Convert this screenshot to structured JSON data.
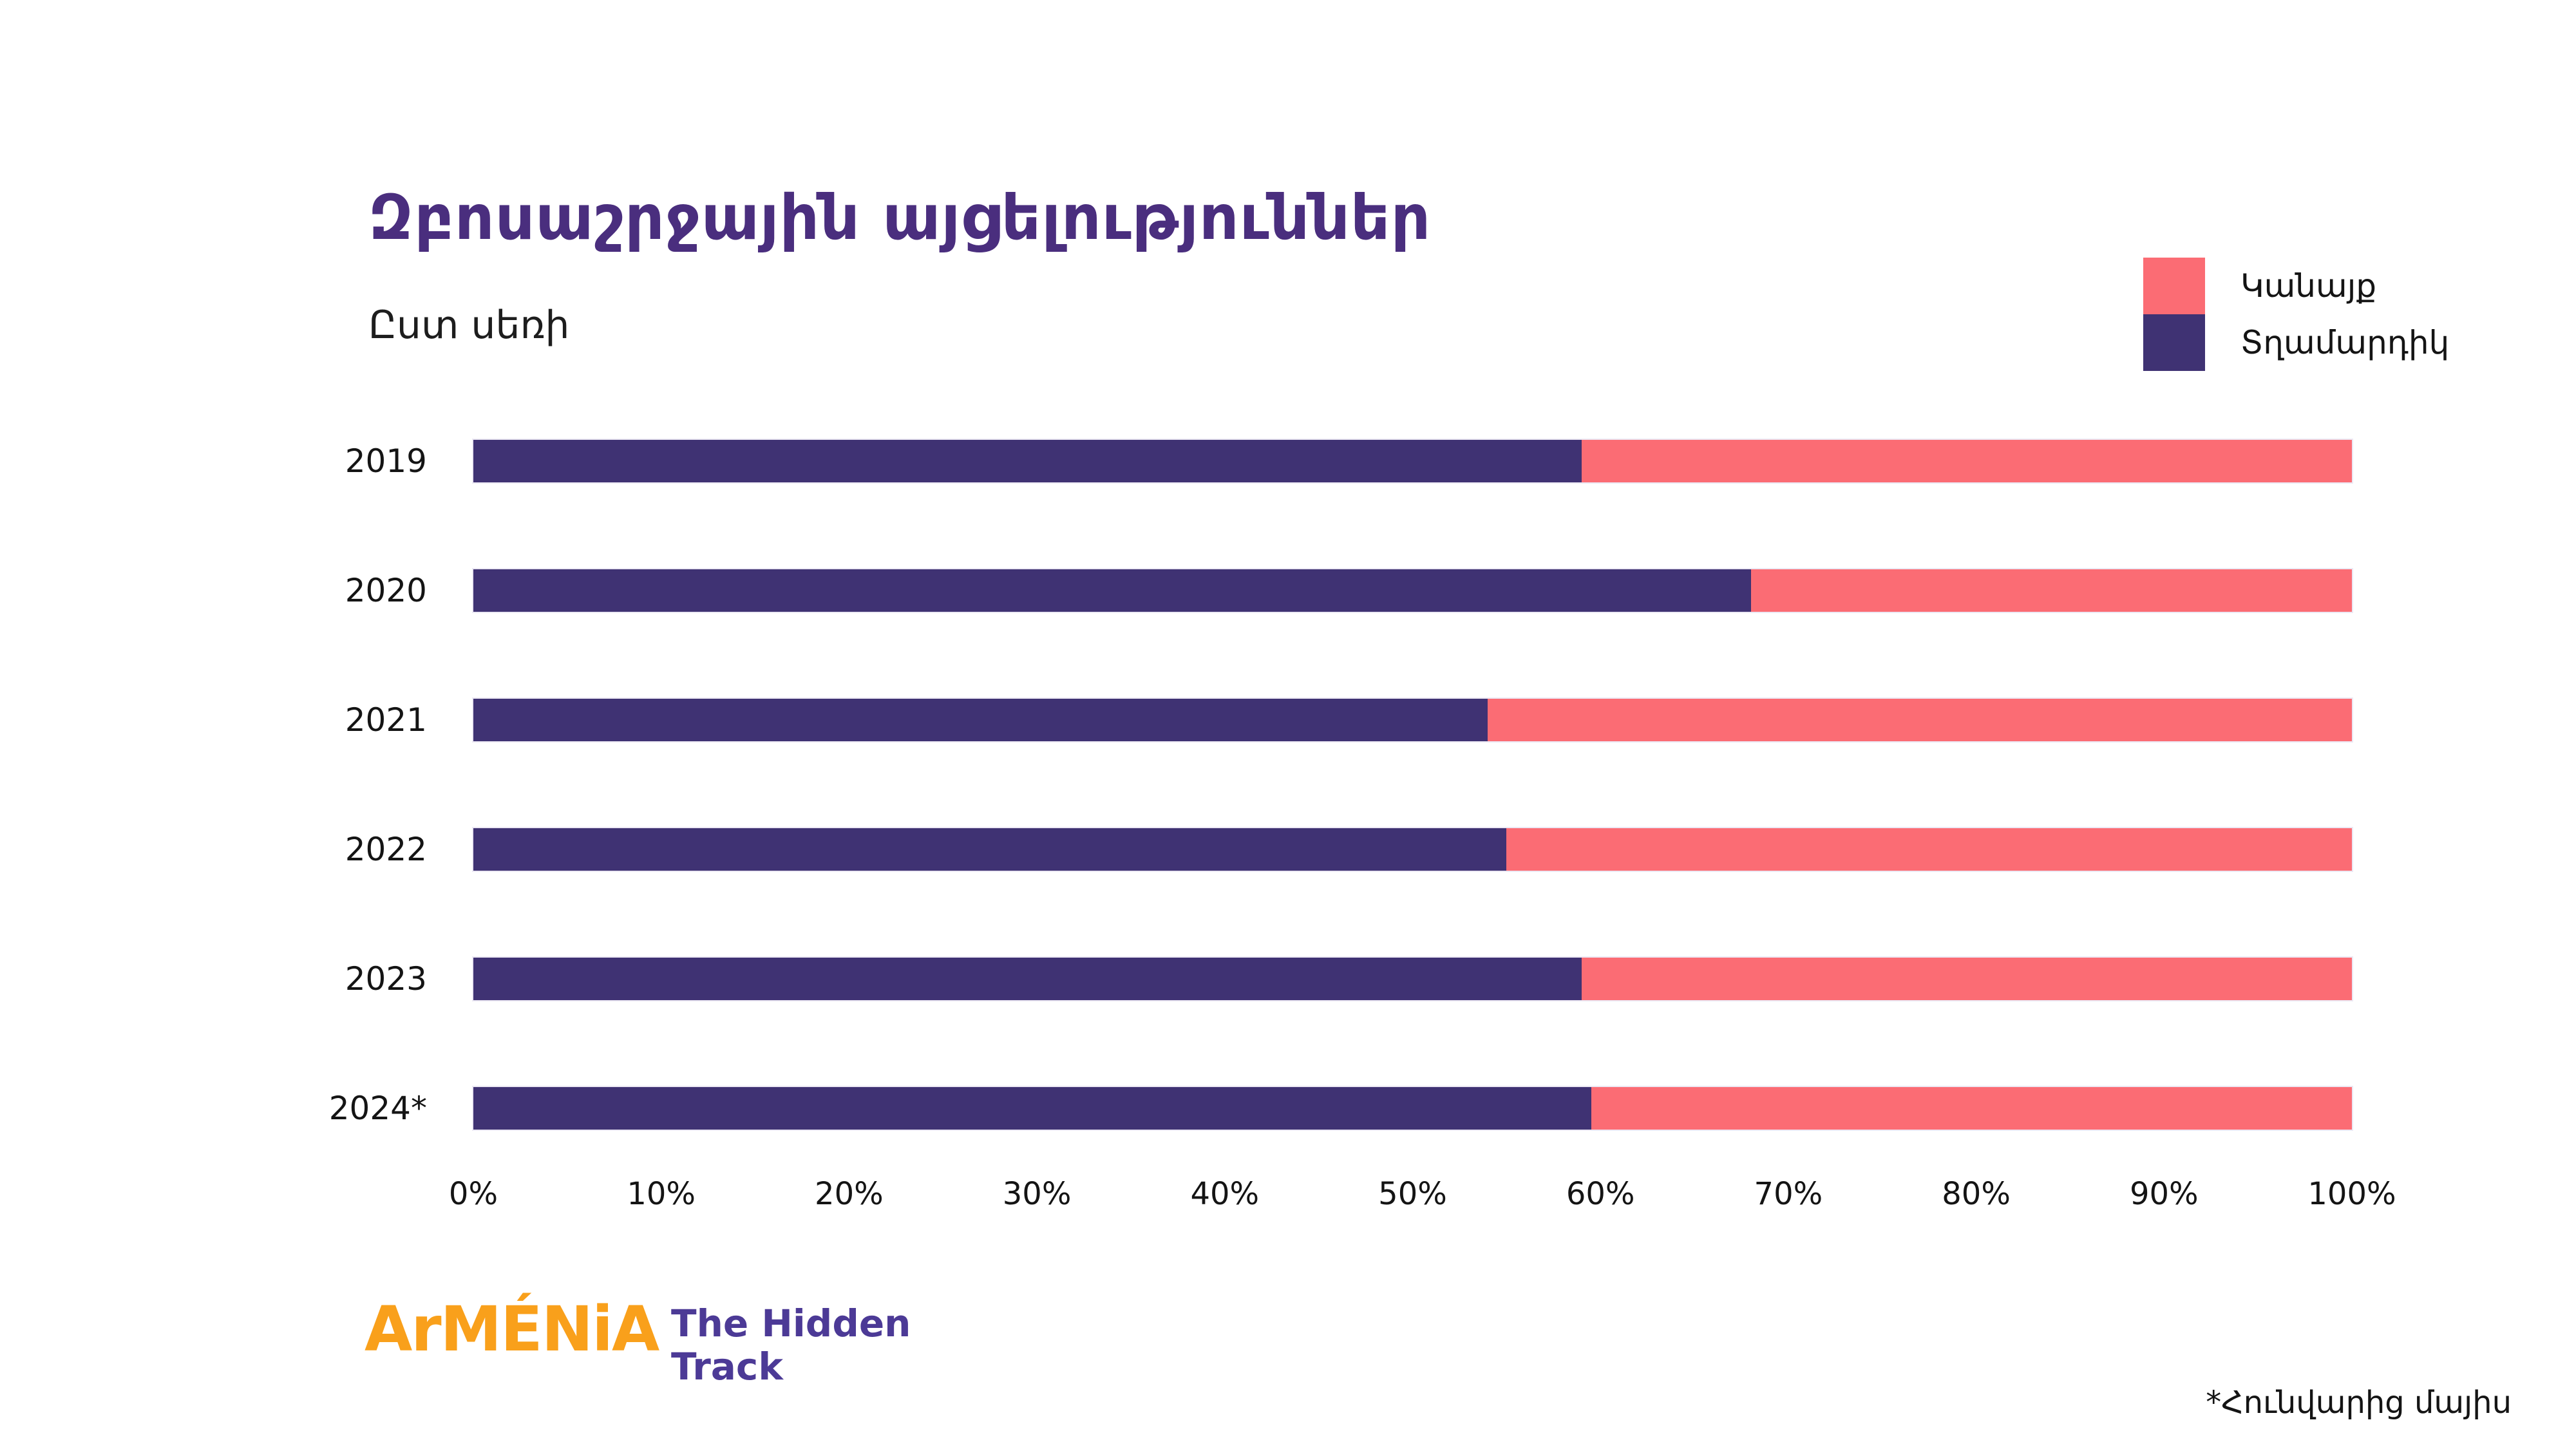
{
  "title": "Զբոսաշրջային այցելություններ",
  "subtitle": "Ըստ սեռի",
  "colors": {
    "title": "#4A2E7E",
    "men_bar": "#3F3273",
    "women_bar": "#FB6C74",
    "logo_brand": "#F9A01B",
    "logo_tagline": "#4C3A96"
  },
  "legend": {
    "items": [
      {
        "label": "Կանայք",
        "color": "#FB6C74"
      },
      {
        "label": "Տղամարդիկ",
        "color": "#3F3273"
      }
    ]
  },
  "footnote": "*Հունվարից մայիս",
  "logo": {
    "brand": "ArMÉNiA",
    "tagline_line1": "The Hidden",
    "tagline_line2": "Track"
  },
  "chart_data": {
    "type": "bar",
    "orientation": "horizontal",
    "stacked": true,
    "stacked_unit": "percent",
    "title": "Զբոսաշրջային այցելություններ",
    "subtitle": "Ըստ սեռի",
    "categories": [
      "2019",
      "2020",
      "2021",
      "2022",
      "2023",
      "2024*"
    ],
    "series": [
      {
        "name": "Տղամարդիկ",
        "color": "#3F3273",
        "values": [
          59,
          68,
          54,
          55,
          59,
          59.5
        ]
      },
      {
        "name": "Կանայք",
        "color": "#FB6C74",
        "values": [
          41,
          32,
          46,
          45,
          41,
          40.5
        ]
      }
    ],
    "x_axis": {
      "min": 0,
      "max": 100,
      "ticks": [
        "0%",
        "10%",
        "20%",
        "30%",
        "40%",
        "50%",
        "60%",
        "70%",
        "80%",
        "90%",
        "100%"
      ]
    },
    "grid": false,
    "legend_position": "top-right"
  }
}
